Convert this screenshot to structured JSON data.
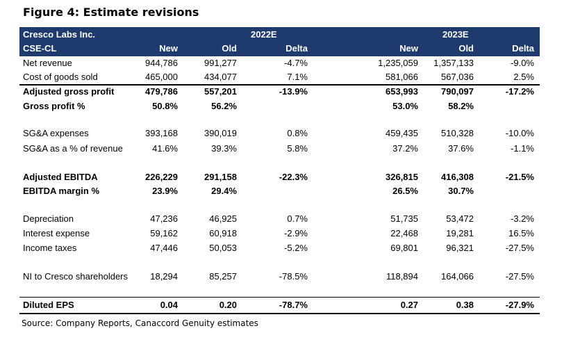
{
  "title": "Figure 4: Estimate revisions",
  "header": {
    "company": "Cresco Labs Inc.",
    "ticker": "CSE-CL",
    "year1": "2022E",
    "year2": "2023E",
    "new": "New",
    "old": "Old",
    "delta": "Delta"
  },
  "rows": [
    {
      "label": "Net revenue",
      "v": [
        "944,786",
        "991,277",
        "-4.7%",
        "1,235,059",
        "1,357,133",
        "-9.0%"
      ]
    },
    {
      "label": "Cost of goods sold",
      "v": [
        "465,000",
        "434,077",
        "7.1%",
        "581,066",
        "567,036",
        "2.5%"
      ]
    },
    {
      "label": "Adjusted gross profit",
      "v": [
        "479,786",
        "557,201",
        "-13.9%",
        "653,993",
        "790,097",
        "-17.2%"
      ]
    },
    {
      "label": "Gross profit %",
      "v": [
        "50.8%",
        "56.2%",
        "",
        "53.0%",
        "58.2%",
        ""
      ]
    },
    {
      "label": "SG&A expenses",
      "v": [
        "393,168",
        "390,019",
        "0.8%",
        "459,435",
        "510,328",
        "-10.0%"
      ]
    },
    {
      "label": "SG&A as a % of revenue",
      "v": [
        "41.6%",
        "39.3%",
        "5.8%",
        "37.2%",
        "37.6%",
        "-1.1%"
      ]
    },
    {
      "label": "Adjusted EBITDA",
      "v": [
        "226,229",
        "291,158",
        "-22.3%",
        "326,815",
        "416,308",
        "-21.5%"
      ]
    },
    {
      "label": "EBITDA margin %",
      "v": [
        "23.9%",
        "29.4%",
        "",
        "26.5%",
        "30.7%",
        ""
      ]
    },
    {
      "label": "Depreciation",
      "v": [
        "47,236",
        "46,925",
        "0.7%",
        "51,735",
        "53,472",
        "-3.2%"
      ]
    },
    {
      "label": "Interest expense",
      "v": [
        "59,162",
        "60,918",
        "-2.9%",
        "22,468",
        "19,281",
        "16.5%"
      ]
    },
    {
      "label": "Income taxes",
      "v": [
        "47,446",
        "50,053",
        "-5.2%",
        "69,801",
        "96,321",
        "-27.5%"
      ]
    },
    {
      "label": "NI to Cresco shareholders",
      "v": [
        "18,294",
        "85,257",
        "-78.5%",
        "118,894",
        "164,066",
        "-27.5%"
      ]
    },
    {
      "label": "Diluted EPS",
      "v": [
        "0.04",
        "0.20",
        "-78.7%",
        "0.27",
        "0.38",
        "-27.9%"
      ]
    }
  ],
  "source": "Source: Company Reports, Canaccord Genuity estimates",
  "colors": {
    "header_bg": "#1f3a6d",
    "header_text": "#ffffff"
  }
}
